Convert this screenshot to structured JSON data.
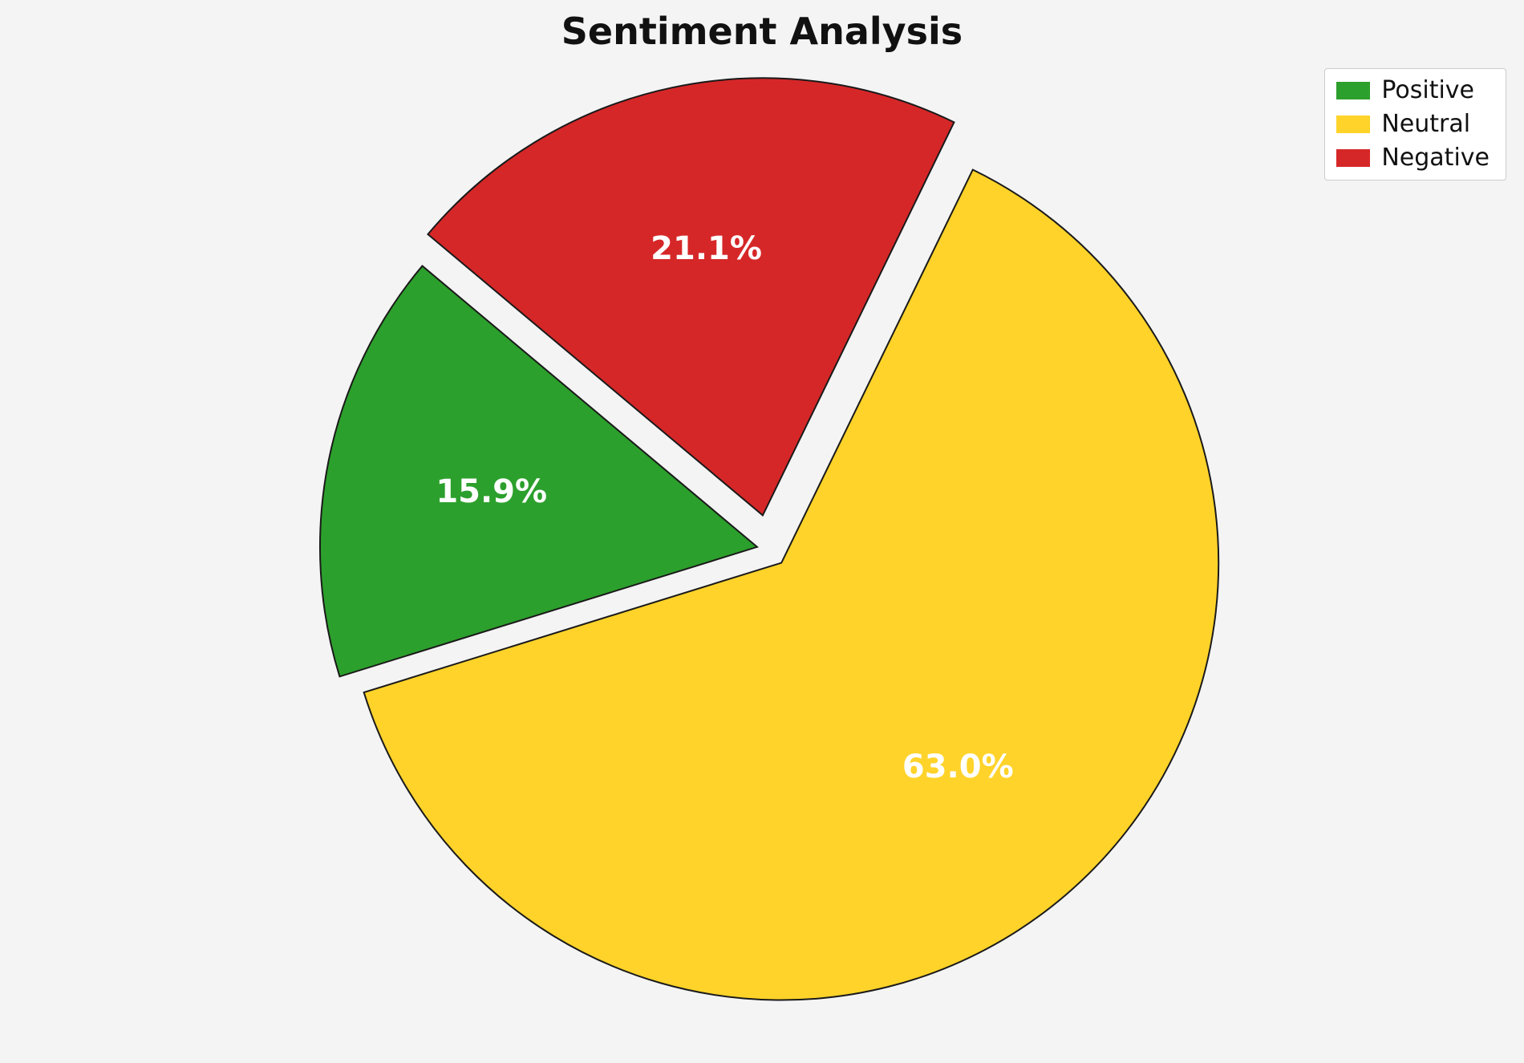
{
  "chart_data": {
    "type": "pie",
    "title": "Sentiment Analysis",
    "labels": [
      "Positive",
      "Neutral",
      "Negative"
    ],
    "values": [
      15.9,
      63.0,
      21.1
    ],
    "pct_labels": [
      "15.9%",
      "63.0%",
      "21.1%"
    ],
    "colors": [
      "#2ca02c",
      "#ffd32a",
      "#d62728"
    ],
    "explode": [
      0.03,
      0.04,
      0.08
    ],
    "start_angle": 140,
    "direction": "counterclockwise",
    "edge_color": "#1a1a1a",
    "label_color": "#ffffff",
    "background": "#f4f4f5",
    "legend": {
      "position": "upper right",
      "entries": [
        "Positive",
        "Neutral",
        "Negative"
      ]
    }
  }
}
